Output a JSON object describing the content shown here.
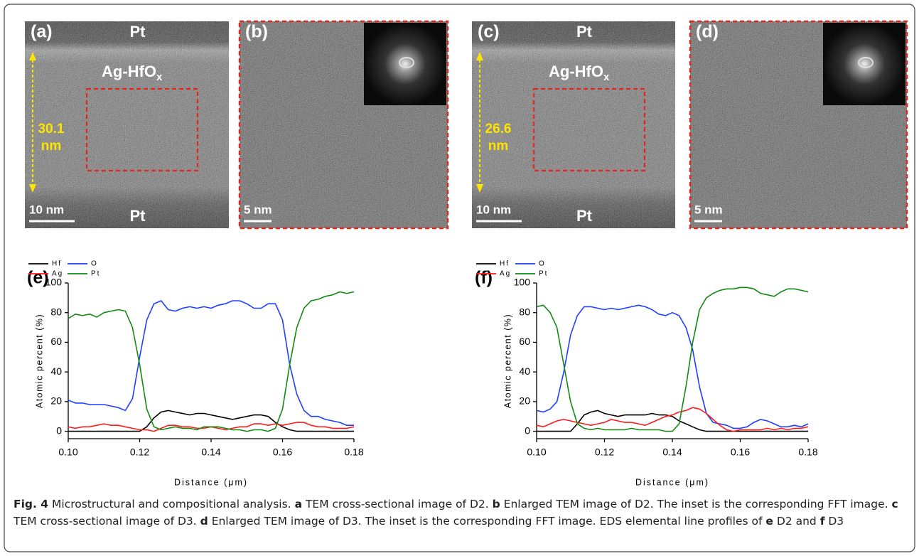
{
  "panels": [
    {
      "label": "(a)",
      "top": "Pt",
      "layer": {
        "main": "Ag-HfO",
        "sub": "x"
      },
      "thickness": [
        "30.1",
        "nm"
      ],
      "scale": "10 nm",
      "bottom": "Pt"
    },
    {
      "label": "(b)",
      "scale": "5 nm"
    },
    {
      "label": "(c)",
      "top": "Pt",
      "layer": {
        "main": "Ag-HfO",
        "sub": "x"
      },
      "thickness": [
        "26.6",
        "nm"
      ],
      "scale": "10 nm",
      "bottom": "Pt"
    },
    {
      "label": "(d)",
      "scale": "5 nm"
    }
  ],
  "chart_data": [
    {
      "type": "line",
      "panel_label": "(e)",
      "x_label": "Distance (μm)",
      "y_label": "Atomic percent (%)",
      "x": [
        0.1,
        0.102,
        0.104,
        0.106,
        0.108,
        0.11,
        0.112,
        0.114,
        0.116,
        0.118,
        0.12,
        0.122,
        0.124,
        0.126,
        0.128,
        0.13,
        0.132,
        0.134,
        0.136,
        0.138,
        0.14,
        0.142,
        0.144,
        0.146,
        0.148,
        0.15,
        0.152,
        0.154,
        0.156,
        0.158,
        0.16,
        0.162,
        0.164,
        0.166,
        0.168,
        0.17,
        0.172,
        0.174,
        0.176,
        0.178,
        0.18
      ],
      "xlim": [
        0.1,
        0.18
      ],
      "xticks": [
        {
          "value": 0.1,
          "label": "0.10"
        },
        {
          "value": 0.12,
          "label": "0.12"
        },
        {
          "value": 0.14,
          "label": "0.14"
        },
        {
          "value": 0.16,
          "label": "0.16"
        },
        {
          "value": 0.18,
          "label": "0.18"
        }
      ],
      "ylim": [
        -5,
        100
      ],
      "yticks": [
        0,
        20,
        40,
        60,
        80,
        100
      ],
      "series": [
        {
          "name": "Hf",
          "color": "#000000",
          "values": [
            0,
            0,
            0,
            0,
            0,
            0,
            0,
            0,
            0,
            0,
            0,
            3,
            9,
            13,
            14,
            13,
            12,
            11,
            12,
            12,
            11,
            10,
            9,
            8,
            9,
            10,
            11,
            11,
            10,
            6,
            3,
            1,
            0,
            0,
            0,
            0,
            0,
            0,
            0,
            0,
            0
          ]
        },
        {
          "name": "O",
          "color": "#1f3fff",
          "values": [
            21,
            19,
            19,
            18,
            18,
            18,
            17,
            16,
            14,
            22,
            50,
            75,
            86,
            88,
            82,
            81,
            83,
            84,
            83,
            84,
            83,
            85,
            86,
            88,
            88,
            86,
            83,
            83,
            86,
            86,
            75,
            45,
            25,
            14,
            10,
            10,
            8,
            7,
            6,
            4,
            4
          ]
        },
        {
          "name": "Ag",
          "color": "#ff1a1a",
          "values": [
            3,
            2,
            3,
            3,
            4,
            5,
            4,
            4,
            3,
            2,
            1,
            1,
            0,
            2,
            4,
            4,
            3,
            3,
            2,
            2,
            3,
            2,
            1,
            2,
            3,
            3,
            5,
            5,
            4,
            5,
            4,
            5,
            6,
            6,
            4,
            3,
            3,
            2,
            2,
            2,
            3
          ]
        },
        {
          "name": "Pt",
          "color": "#138a13",
          "values": [
            76,
            79,
            78,
            79,
            77,
            80,
            81,
            82,
            81,
            70,
            45,
            15,
            3,
            1,
            2,
            3,
            2,
            2,
            1,
            3,
            3,
            3,
            2,
            1,
            1,
            0,
            1,
            1,
            0,
            2,
            15,
            45,
            70,
            83,
            88,
            89,
            91,
            92,
            94,
            93,
            94
          ]
        }
      ]
    },
    {
      "type": "line",
      "panel_label": "(f)",
      "x_label": "Distance (μm)",
      "y_label": "Atomic percent (%)",
      "x": [
        0.1,
        0.102,
        0.104,
        0.106,
        0.108,
        0.11,
        0.112,
        0.114,
        0.116,
        0.118,
        0.12,
        0.122,
        0.124,
        0.126,
        0.128,
        0.13,
        0.132,
        0.134,
        0.136,
        0.138,
        0.14,
        0.142,
        0.144,
        0.146,
        0.148,
        0.15,
        0.152,
        0.154,
        0.156,
        0.158,
        0.16,
        0.162,
        0.164,
        0.166,
        0.168,
        0.17,
        0.172,
        0.174,
        0.176,
        0.178,
        0.18
      ],
      "xlim": [
        0.1,
        0.18
      ],
      "xticks": [
        {
          "value": 0.1,
          "label": "0.10"
        },
        {
          "value": 0.12,
          "label": "0.12"
        },
        {
          "value": 0.14,
          "label": "0.14"
        },
        {
          "value": 0.16,
          "label": "0.16"
        },
        {
          "value": 0.18,
          "label": "0.18"
        }
      ],
      "ylim": [
        -5,
        100
      ],
      "yticks": [
        0,
        20,
        40,
        60,
        80,
        100
      ],
      "series": [
        {
          "name": "Hf",
          "color": "#000000",
          "values": [
            0,
            0,
            0,
            0,
            0,
            0,
            5,
            11,
            13,
            14,
            12,
            11,
            10,
            11,
            11,
            11,
            11,
            12,
            11,
            11,
            10,
            7,
            5,
            3,
            1,
            0,
            0,
            0,
            0,
            0,
            0,
            0,
            0,
            0,
            0,
            0,
            0,
            0,
            0,
            0,
            0
          ]
        },
        {
          "name": "O",
          "color": "#1f3fff",
          "values": [
            14,
            13,
            15,
            20,
            40,
            65,
            78,
            84,
            84,
            83,
            82,
            83,
            82,
            83,
            84,
            85,
            84,
            82,
            79,
            78,
            80,
            78,
            70,
            55,
            30,
            12,
            6,
            5,
            4,
            2,
            2,
            3,
            6,
            8,
            7,
            5,
            3,
            3,
            4,
            3,
            5
          ]
        },
        {
          "name": "Ag",
          "color": "#ff1a1a",
          "values": [
            4,
            3,
            5,
            7,
            8,
            7,
            6,
            5,
            4,
            5,
            6,
            8,
            7,
            6,
            6,
            5,
            4,
            6,
            8,
            10,
            11,
            13,
            14,
            16,
            15,
            12,
            8,
            4,
            1,
            0,
            1,
            1,
            1,
            1,
            2,
            1,
            2,
            1,
            2,
            2,
            3
          ]
        },
        {
          "name": "Pt",
          "color": "#138a13",
          "values": [
            84,
            85,
            80,
            70,
            45,
            20,
            5,
            2,
            1,
            2,
            1,
            1,
            1,
            1,
            2,
            1,
            1,
            1,
            1,
            0,
            0,
            5,
            30,
            60,
            82,
            90,
            93,
            95,
            96,
            96,
            97,
            97,
            96,
            93,
            92,
            91,
            94,
            96,
            96,
            95,
            94
          ]
        }
      ]
    }
  ],
  "caption": {
    "label": "Fig. 4",
    "parts": [
      "Microstructural and compositional analysis.",
      "a",
      "TEM cross-sectional image of D2.",
      "b",
      "Enlarged TEM image of D2. The inset is the corresponding FFT image.",
      "c",
      "TEM cross-sectional image of D3.",
      "d",
      "Enlarged TEM image of D3. The inset is the corresponding FFT image. EDS elemental line profiles of",
      "e",
      "D2 and",
      "f",
      "D3"
    ]
  }
}
